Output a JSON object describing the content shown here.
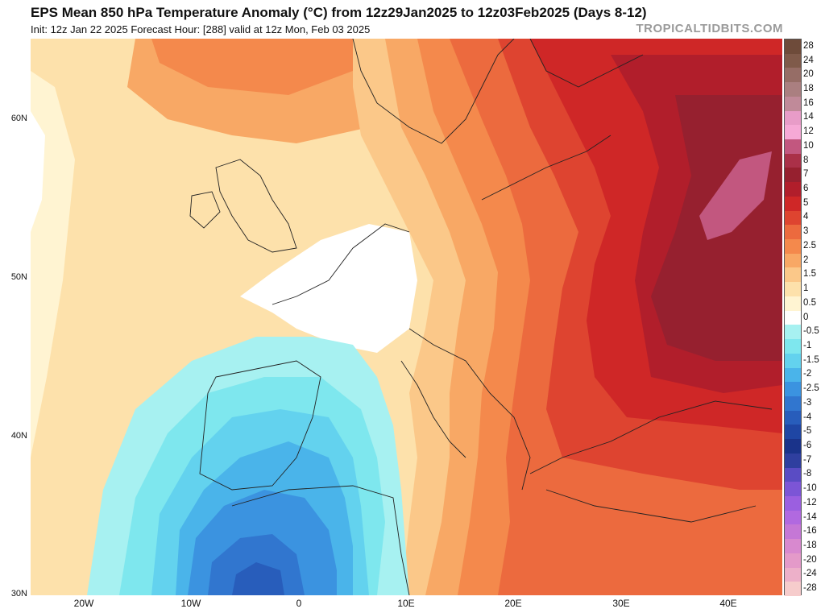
{
  "header": {
    "title": "EPS Mean 850 hPa Temperature Anomaly (°C) from 12z29Jan2025 to 12z03Feb2025 (Days 8-12)",
    "subtitle": "Init: 12z Jan 22 2025   Forecast Hour: [288]   valid at 12z Mon, Feb 03 2025",
    "brand": "TROPICALTIDBITS.COM"
  },
  "map": {
    "extent": {
      "lon_min": -25,
      "lon_max": 45,
      "lat_min": 30,
      "lat_max": 65
    },
    "lat_ticks": [
      {
        "value": 30,
        "label": "30N"
      },
      {
        "value": 40,
        "label": "40N"
      },
      {
        "value": 50,
        "label": "50N"
      },
      {
        "value": 60,
        "label": "60N"
      }
    ],
    "lon_ticks": [
      {
        "value": -20,
        "label": "20W"
      },
      {
        "value": -10,
        "label": "10W"
      },
      {
        "value": 0,
        "label": "0"
      },
      {
        "value": 10,
        "label": "10E"
      },
      {
        "value": 20,
        "label": "20E"
      },
      {
        "value": 30,
        "label": "30E"
      },
      {
        "value": 40,
        "label": "40E"
      }
    ]
  },
  "colorbar": {
    "levels": [
      {
        "label": "28",
        "color": "#6e4b3a"
      },
      {
        "label": "24",
        "color": "#7f5a4a"
      },
      {
        "label": "20",
        "color": "#966d66"
      },
      {
        "label": "18",
        "color": "#aa7f80"
      },
      {
        "label": "16",
        "color": "#c08a99"
      },
      {
        "label": "14",
        "color": "#e89cc8"
      },
      {
        "label": "12",
        "color": "#f6a9d6"
      },
      {
        "label": "10",
        "color": "#c2577f"
      },
      {
        "label": "8",
        "color": "#aa3048"
      },
      {
        "label": "7",
        "color": "#96202f"
      },
      {
        "label": "6",
        "color": "#b11e2b"
      },
      {
        "label": "5",
        "color": "#cf2727"
      },
      {
        "label": "4",
        "color": "#de4430"
      },
      {
        "label": "3",
        "color": "#ec6a3e"
      },
      {
        "label": "2.5",
        "color": "#f4894c"
      },
      {
        "label": "2",
        "color": "#f8a865"
      },
      {
        "label": "1.5",
        "color": "#fbc889"
      },
      {
        "label": "1",
        "color": "#fde1ab"
      },
      {
        "label": "0.5",
        "color": "#fff4d2"
      },
      {
        "label": "0",
        "color": "#ffffff"
      },
      {
        "label": "-0.5",
        "color": "#a7f1f1"
      },
      {
        "label": "-1",
        "color": "#7ee7ee"
      },
      {
        "label": "-1.5",
        "color": "#63d2ee"
      },
      {
        "label": "-2",
        "color": "#4ab4ea"
      },
      {
        "label": "-2.5",
        "color": "#3b93e0"
      },
      {
        "label": "-3",
        "color": "#3176cf"
      },
      {
        "label": "-4",
        "color": "#285dbb"
      },
      {
        "label": "-5",
        "color": "#1f46a4"
      },
      {
        "label": "-6",
        "color": "#1a338a"
      },
      {
        "label": "-7",
        "color": "#2f3f9f"
      },
      {
        "label": "-8",
        "color": "#5a4cc4"
      },
      {
        "label": "-10",
        "color": "#7c55d6"
      },
      {
        "label": "-12",
        "color": "#9b5fe0"
      },
      {
        "label": "-14",
        "color": "#b169e0"
      },
      {
        "label": "-16",
        "color": "#c577d6"
      },
      {
        "label": "-18",
        "color": "#d889cf"
      },
      {
        "label": "-20",
        "color": "#e49ac9"
      },
      {
        "label": "-24",
        "color": "#edb0c9"
      },
      {
        "label": "-28",
        "color": "#f6cccc"
      }
    ]
  }
}
